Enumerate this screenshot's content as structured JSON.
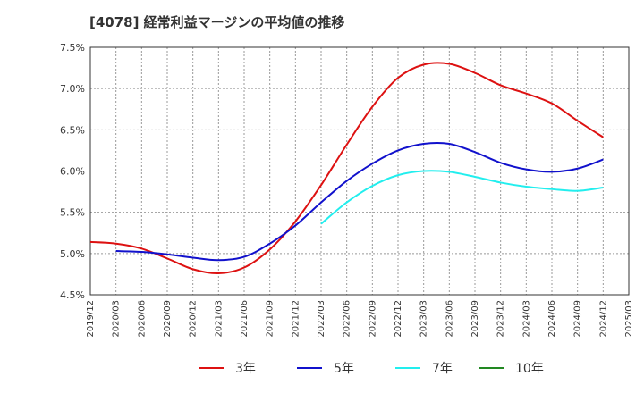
{
  "chart_data": {
    "type": "line",
    "title": "[4078]  経常利益マージンの平均値の推移",
    "xlabel": "",
    "ylabel": "",
    "x_ticks": [
      "2019/12",
      "2020/03",
      "2020/06",
      "2020/09",
      "2020/12",
      "2021/03",
      "2021/06",
      "2021/09",
      "2021/12",
      "2022/03",
      "2022/06",
      "2022/09",
      "2022/12",
      "2023/03",
      "2023/06",
      "2023/09",
      "2023/12",
      "2024/03",
      "2024/06",
      "2024/09",
      "2024/12",
      "2025/03"
    ],
    "y_ticks": [
      "7.5%",
      "7.0%",
      "6.5%",
      "6.0%",
      "5.5%",
      "5.0%",
      "4.5%"
    ],
    "ylim": [
      4.5,
      7.5
    ],
    "grid": true,
    "legend_position": "bottom",
    "series": [
      {
        "name": "3年",
        "color": "#dd1111",
        "x": [
          "2019/12",
          "2020/03",
          "2020/06",
          "2020/09",
          "2020/12",
          "2021/03",
          "2021/06",
          "2021/09",
          "2021/12",
          "2022/03",
          "2022/06",
          "2022/09",
          "2022/12",
          "2023/03",
          "2023/06",
          "2023/09",
          "2023/12",
          "2024/03",
          "2024/06",
          "2024/09",
          "2024/12"
        ],
        "values": [
          5.14,
          5.12,
          5.06,
          4.94,
          4.81,
          4.76,
          4.83,
          5.05,
          5.39,
          5.83,
          6.32,
          6.78,
          7.13,
          7.29,
          7.3,
          7.19,
          7.04,
          6.94,
          6.82,
          6.61,
          6.41
        ]
      },
      {
        "name": "5年",
        "color": "#1111cc",
        "x": [
          "2020/03",
          "2020/06",
          "2020/09",
          "2020/12",
          "2021/03",
          "2021/06",
          "2021/09",
          "2021/12",
          "2022/03",
          "2022/06",
          "2022/09",
          "2022/12",
          "2023/03",
          "2023/06",
          "2023/09",
          "2023/12",
          "2024/03",
          "2024/06",
          "2024/09",
          "2024/12"
        ],
        "values": [
          5.03,
          5.02,
          4.99,
          4.95,
          4.92,
          4.96,
          5.12,
          5.34,
          5.62,
          5.88,
          6.09,
          6.25,
          6.33,
          6.33,
          6.23,
          6.1,
          6.02,
          5.99,
          6.03,
          6.14
        ]
      },
      {
        "name": "7年",
        "color": "#22eeee",
        "x": [
          "2022/03",
          "2022/06",
          "2022/09",
          "2022/12",
          "2023/03",
          "2023/06",
          "2023/09",
          "2023/12",
          "2024/03",
          "2024/06",
          "2024/09",
          "2024/12"
        ],
        "values": [
          5.36,
          5.62,
          5.82,
          5.95,
          6.0,
          5.99,
          5.93,
          5.86,
          5.81,
          5.78,
          5.76,
          5.8
        ]
      },
      {
        "name": "10年",
        "color": "#228822",
        "x": [],
        "values": []
      }
    ]
  }
}
